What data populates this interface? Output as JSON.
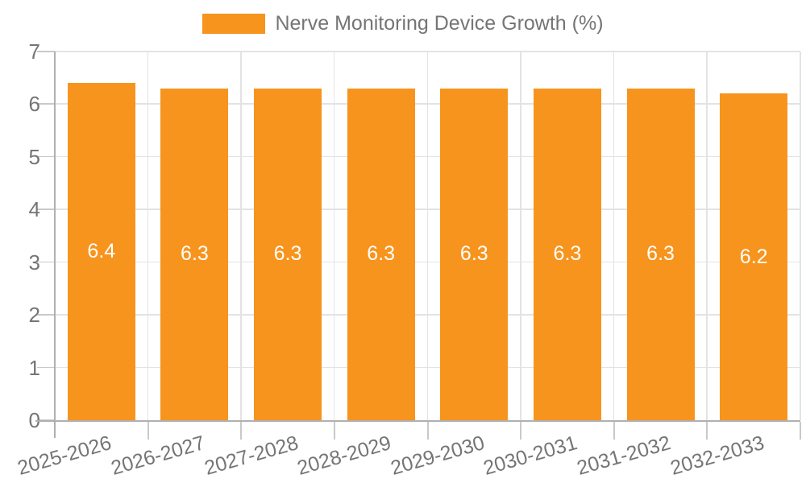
{
  "chart_data": {
    "type": "bar",
    "title": "",
    "legend_entries": [
      "Nerve Monitoring Device Growth (%)"
    ],
    "legend_position": "top-center",
    "categories": [
      "2025-2026",
      "2026-2027",
      "2027-2028",
      "2028-2029",
      "2029-2030",
      "2030-2031",
      "2031-2032",
      "2032-2033"
    ],
    "values": [
      6.4,
      6.3,
      6.3,
      6.3,
      6.3,
      6.3,
      6.3,
      6.2
    ],
    "value_labels": [
      "6.4",
      "6.3",
      "6.3",
      "6.3",
      "6.3",
      "6.3",
      "6.3",
      "6.2"
    ],
    "xlabel": "",
    "ylabel": "",
    "ylim": [
      0,
      7
    ],
    "yticks": [
      0,
      1,
      2,
      3,
      4,
      5,
      6,
      7
    ],
    "grid": true,
    "x_tick_rotation_deg": -16,
    "colors": {
      "bar": "#F7941E",
      "axis_text": "#757575",
      "grid_line": "#E3E3E3",
      "axis_line": "#B0B0B0",
      "tick_line": "#C9C9C9",
      "value_label": "#FFFFFF",
      "background": "#FFFFFF"
    }
  }
}
